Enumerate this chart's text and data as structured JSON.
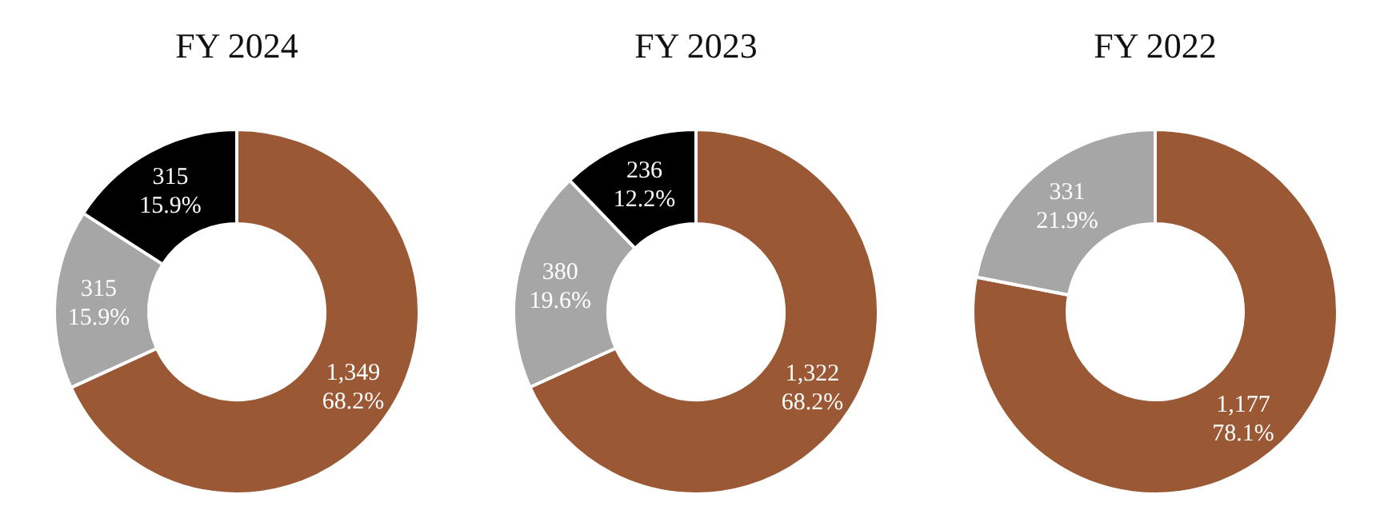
{
  "chart_data": [
    {
      "type": "donut",
      "title": "FY 2024",
      "categories": [
        null,
        null,
        null
      ],
      "values": [
        1349,
        315,
        315
      ],
      "colors": [
        "#9a5934",
        "#a6a6a6",
        "#000000"
      ],
      "value_labels": [
        "1,349\n68.2%",
        "315\n15.9%",
        "315\n15.9%"
      ]
    },
    {
      "type": "donut",
      "title": "FY 2023",
      "categories": [
        null,
        null,
        null
      ],
      "values": [
        1322,
        380,
        236
      ],
      "colors": [
        "#9a5934",
        "#a6a6a6",
        "#000000"
      ],
      "value_labels": [
        "1,322\n68.2%",
        "380\n19.6%",
        "236\n12.2%"
      ]
    },
    {
      "type": "donut",
      "title": "FY 2022",
      "categories": [
        null,
        null
      ],
      "values": [
        1177,
        331
      ],
      "colors": [
        "#9a5934",
        "#a6a6a6"
      ],
      "value_labels": [
        "1,177\n78.1%",
        "331\n21.9%"
      ]
    }
  ]
}
